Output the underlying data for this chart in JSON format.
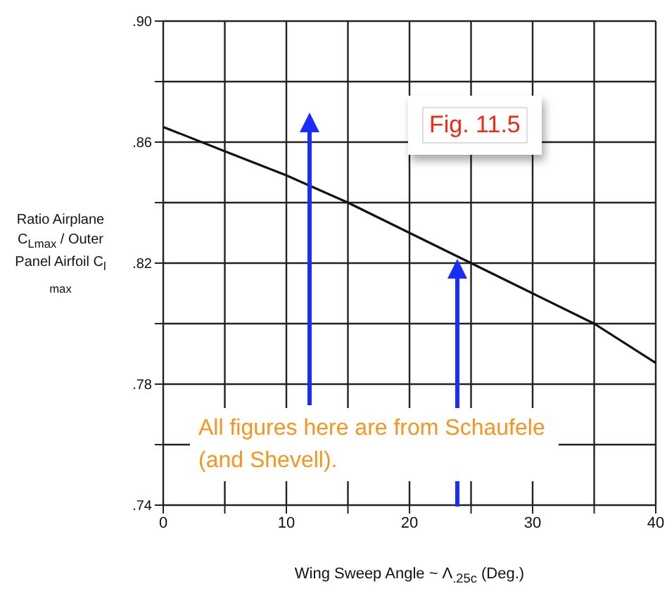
{
  "chart_data": {
    "type": "line",
    "xlabel": "Wing Sweep Angle ~ Λ$_{.25c}$ (Deg.)",
    "ylabel": "Ratio Airplane C$_{Lmax}$ / Outer Panel Airfoil C$_{l max}$",
    "x": [
      0,
      5,
      10,
      15,
      20,
      25,
      30,
      35,
      40
    ],
    "series": [
      {
        "color": "#111111",
        "values": [
          0.865,
          0.857,
          0.849,
          0.84,
          0.83,
          0.82,
          0.81,
          0.8,
          0.787
        ]
      }
    ],
    "xlim": [
      0,
      40
    ],
    "xticks": [
      0,
      {
        "value": 5,
        "label": null
      },
      10,
      {
        "value": 15,
        "label": null
      },
      20,
      {
        "value": 25,
        "label": null
      },
      30,
      {
        "value": 35,
        "label": null
      },
      40
    ],
    "ylim": [
      0.74,
      0.9
    ],
    "yticks": [
      {
        "value": 0.74,
        "label": ".74"
      },
      {
        "value": 0.76,
        "label": null
      },
      {
        "value": 0.78,
        "label": ".78"
      },
      {
        "value": 0.8,
        "label": null
      },
      {
        "value": 0.82,
        "label": ".82"
      },
      {
        "value": 0.84,
        "label": null
      },
      {
        "value": 0.86,
        "label": ".86"
      },
      {
        "value": 0.88,
        "label": null
      },
      {
        "value": 0.9,
        "label": ".90"
      }
    ],
    "grid": true,
    "marker": "none",
    "line_style": "solid",
    "annotations": [
      "Fig. 11.5",
      "All figures here are from Schaufele (and Shevell)."
    ]
  }
}
